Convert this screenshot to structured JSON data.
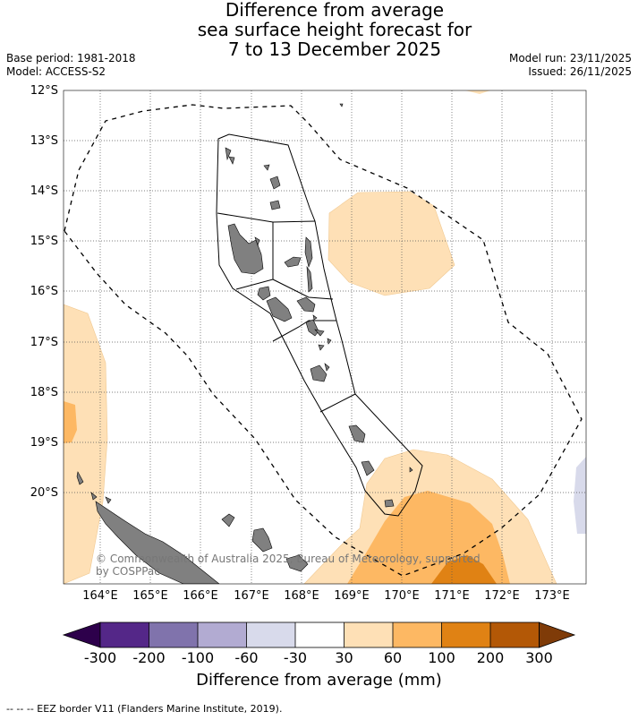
{
  "title": {
    "line1": "Difference from average",
    "line2": "sea surface height forecast for",
    "line3": "7 to 13 December 2025"
  },
  "info_left": {
    "base_period": "Base period: 1981-2018",
    "model": "Model: ACCESS-S2"
  },
  "info_right": {
    "model_run": "Model run: 23/11/2025",
    "issued": "Issued: 26/11/2025"
  },
  "latitude_labels": [
    "12°S",
    "13°S",
    "14°S",
    "15°S",
    "16°S",
    "17°S",
    "18°S",
    "19°S",
    "20°S"
  ],
  "longitude_labels": [
    "164°E",
    "165°E",
    "166°E",
    "167°E",
    "168°E",
    "169°E",
    "170°E",
    "171°E",
    "172°E",
    "173°E"
  ],
  "copyright": {
    "line1": "© Commonwealth of Australia 2025, Bureau of Meteorology, supported",
    "line2": "by COSPPac"
  },
  "colorbar": {
    "labels": [
      "-300",
      "-200",
      "-100",
      "-60",
      "-30",
      "30",
      "60",
      "100",
      "200",
      "300"
    ],
    "colors": {
      "below_min": "#2d004b",
      "c1": "#542788",
      "c2": "#8073ac",
      "c3": "#b2abd2",
      "c4": "#d8daeb",
      "c5": "#ffffff",
      "c6": "#fee0b6",
      "c7": "#fdb863",
      "c8": "#e08214",
      "c9": "#b35806",
      "above_max": "#7f3b08"
    },
    "title": "Difference from average (mm)"
  },
  "footer": {
    "text": "--  --  -- EEZ border V11 (Flanders Marine Institute, 2019)."
  }
}
